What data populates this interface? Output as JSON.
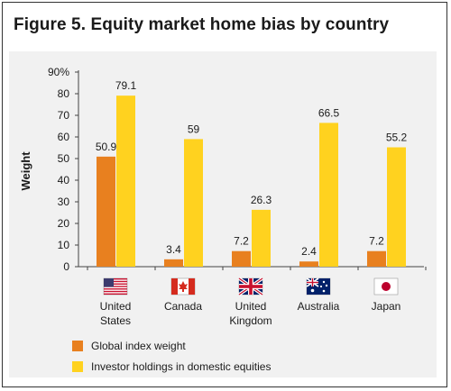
{
  "chart_data": {
    "type": "bar",
    "title": "Figure 5. Equity market home bias by country",
    "ylabel": "Weight",
    "ylim": [
      0,
      90
    ],
    "yticks": [
      "0",
      "10",
      "20",
      "30",
      "40",
      "50",
      "60",
      "70",
      "80",
      "90%"
    ],
    "categories": [
      [
        "United",
        "States"
      ],
      [
        "Canada"
      ],
      [
        "United",
        "Kingdom"
      ],
      [
        "Australia"
      ],
      [
        "Japan"
      ]
    ],
    "flags": [
      "us-flag-icon",
      "canada-flag-icon",
      "uk-flag-icon",
      "australia-flag-icon",
      "japan-flag-icon"
    ],
    "series": [
      {
        "name": "Global index weight",
        "color": "#e8801f",
        "values": [
          50.9,
          3.4,
          7.2,
          2.4,
          7.2
        ],
        "labels": [
          "50.9",
          "3.4",
          "7.2",
          "2.4",
          "7.2"
        ]
      },
      {
        "name": "Investor holdings in domestic equities",
        "color": "#ffd21f",
        "values": [
          79.1,
          59,
          26.3,
          66.5,
          55.2
        ],
        "labels": [
          "79.1",
          "59",
          "26.3",
          "66.5",
          "55.2"
        ]
      }
    ],
    "legend_position": "bottom-left",
    "grid": false
  }
}
